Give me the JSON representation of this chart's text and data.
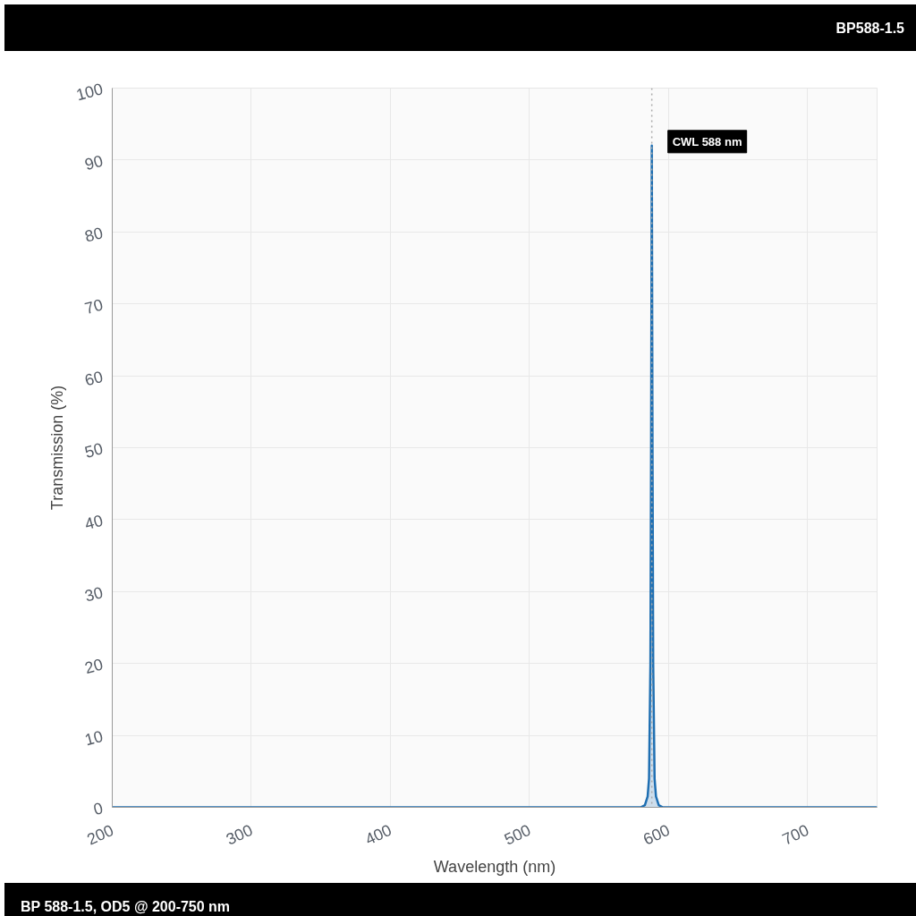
{
  "chart_data": {
    "type": "area",
    "title": "BP588-1.5",
    "xlabel": "Wavelength (nm)",
    "ylabel": "Transmission (%)",
    "x": [
      200,
      580,
      583,
      585,
      586,
      587,
      587.5,
      588,
      588.5,
      589,
      590,
      591,
      593,
      596,
      750
    ],
    "series": [
      {
        "color": "#1f6fb2",
        "values": [
          0,
          0,
          0.3,
          1.5,
          4,
          20,
          50,
          92,
          50,
          20,
          4,
          1.5,
          0.3,
          0,
          0
        ]
      }
    ],
    "xlim": [
      200,
      750
    ],
    "xticks": [
      200,
      300,
      400,
      500,
      600,
      700
    ],
    "ylim": [
      0,
      100
    ],
    "yticks": [
      0,
      10,
      20,
      30,
      40,
      50,
      60,
      70,
      80,
      90,
      100
    ],
    "grid": true,
    "ref_lines": [
      {
        "axis": "x",
        "value": 588,
        "label": "CWL 588 nm",
        "color": "#aaaaaa",
        "line_style": "dotted"
      }
    ],
    "annotations": [
      "BP 588-1.5, OD5 @ 200-750 nm"
    ]
  }
}
